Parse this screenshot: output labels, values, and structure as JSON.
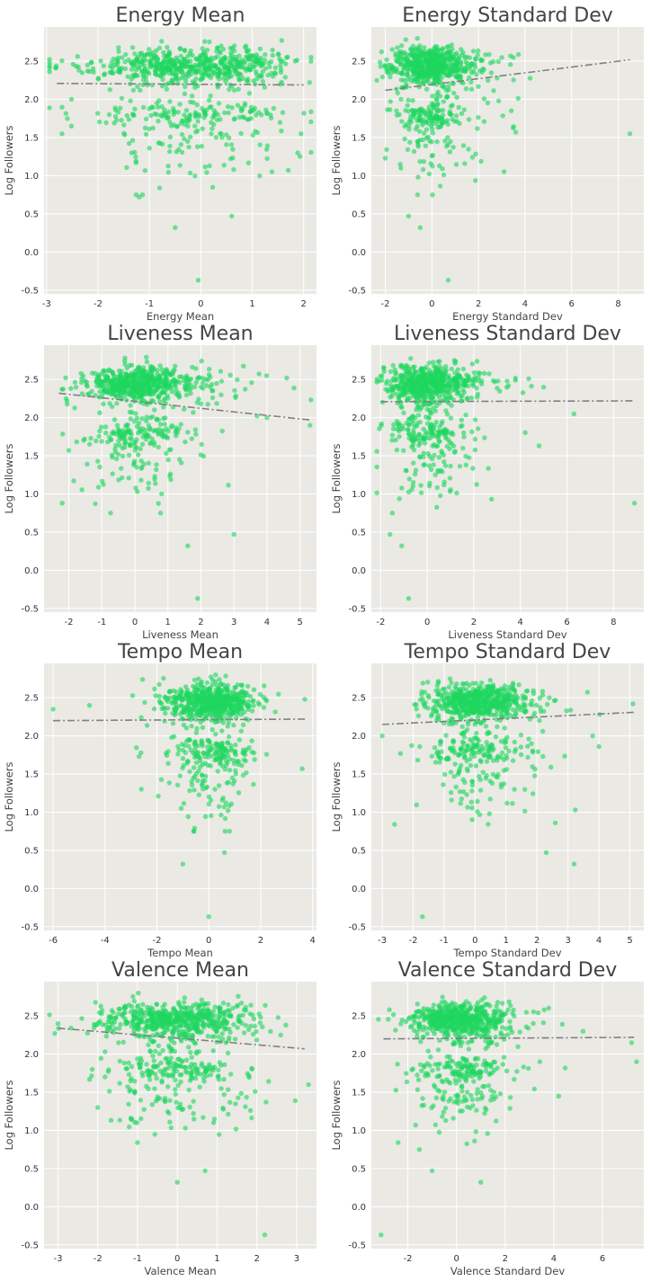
{
  "colors": {
    "points": "#1ed760",
    "fit_line": "#808080",
    "plot_background": "#eae9e4",
    "grid": "#ffffff"
  },
  "chart_data": [
    {
      "type": "scatter",
      "title": "Energy Mean",
      "xlabel": "Energy Mean",
      "ylabel": "Log Followers",
      "xlim": [
        -3.05,
        2.25
      ],
      "ylim": [
        -0.55,
        2.95
      ],
      "xticks": [
        -3,
        -2,
        -1,
        0,
        1,
        2
      ],
      "yticks": [
        -0.5,
        0.0,
        0.5,
        1.0,
        1.5,
        2.0,
        2.5
      ],
      "x_center": 0.0,
      "x_spread": 0.95,
      "x_skew": -0.5,
      "outliers": [
        [
          -0.05,
          -0.37
        ],
        [
          -0.5,
          0.32
        ],
        [
          0.6,
          0.47
        ],
        [
          -1.2,
          0.72
        ],
        [
          -0.8,
          0.84
        ],
        [
          1.7,
          1.07
        ],
        [
          -2.7,
          1.55
        ],
        [
          1.95,
          1.55
        ]
      ],
      "trend": {
        "x": [
          -2.8,
          2.0
        ],
        "y": [
          2.21,
          2.19
        ]
      },
      "grid": true
    },
    {
      "type": "scatter",
      "title": "Energy Standard Dev",
      "xlabel": "Energy Standard Dev",
      "ylabel": "Log Followers",
      "xlim": [
        -2.6,
        9.1
      ],
      "ylim": [
        -0.55,
        2.95
      ],
      "xticks": [
        -2,
        0,
        2,
        4,
        6,
        8
      ],
      "yticks": [
        -0.5,
        0.0,
        0.5,
        1.0,
        1.5,
        2.0,
        2.5
      ],
      "x_center": -0.2,
      "x_spread": 0.8,
      "x_skew": 0.9,
      "outliers": [
        [
          0.7,
          -0.37
        ],
        [
          -0.5,
          0.32
        ],
        [
          -1.0,
          0.47
        ],
        [
          -2.0,
          1.23
        ],
        [
          8.5,
          1.55
        ],
        [
          3.6,
          1.57
        ],
        [
          3.5,
          2.55
        ],
        [
          3.0,
          2.55
        ]
      ],
      "trend": {
        "x": [
          -2.0,
          8.5
        ],
        "y": [
          2.12,
          2.52
        ]
      },
      "grid": true
    },
    {
      "type": "scatter",
      "title": "Liveness Mean",
      "xlabel": "Liveness Mean",
      "ylabel": "Log Followers",
      "xlim": [
        -2.75,
        5.5
      ],
      "ylim": [
        -0.55,
        2.95
      ],
      "xticks": [
        -2,
        -1,
        0,
        1,
        2,
        3,
        4,
        5
      ],
      "yticks": [
        -0.5,
        0.0,
        0.5,
        1.0,
        1.5,
        2.0,
        2.5
      ],
      "x_center": 0.0,
      "x_spread": 0.75,
      "x_skew": 0.9,
      "outliers": [
        [
          1.9,
          -0.37
        ],
        [
          1.6,
          0.32
        ],
        [
          3.0,
          0.47
        ],
        [
          -2.2,
          0.88
        ],
        [
          4.6,
          2.52
        ],
        [
          5.3,
          1.9
        ],
        [
          4.0,
          2.0
        ],
        [
          -2.0,
          1.57
        ]
      ],
      "trend": {
        "x": [
          -2.3,
          5.3
        ],
        "y": [
          2.32,
          1.97
        ]
      },
      "grid": true
    },
    {
      "type": "scatter",
      "title": "Liveness Standard Dev",
      "xlabel": "Liveness Standard Dev",
      "ylabel": "Log Followers",
      "xlim": [
        -2.4,
        9.3
      ],
      "ylim": [
        -0.55,
        2.95
      ],
      "xticks": [
        -2,
        0,
        2,
        4,
        6,
        8
      ],
      "yticks": [
        -0.5,
        0.0,
        0.5,
        1.0,
        1.5,
        2.0,
        2.5
      ],
      "x_center": -0.2,
      "x_spread": 0.8,
      "x_skew": 0.9,
      "outliers": [
        [
          -0.8,
          -0.37
        ],
        [
          -1.1,
          0.32
        ],
        [
          -1.6,
          0.47
        ],
        [
          8.9,
          0.88
        ],
        [
          6.3,
          2.05
        ],
        [
          5.0,
          2.4
        ],
        [
          4.8,
          1.63
        ],
        [
          -1.5,
          0.75
        ]
      ],
      "trend": {
        "x": [
          -2.0,
          8.9
        ],
        "y": [
          2.21,
          2.22
        ]
      },
      "grid": true
    },
    {
      "type": "scatter",
      "title": "Tempo Mean",
      "xlabel": "Tempo Mean",
      "ylabel": "Log Followers",
      "xlim": [
        -6.35,
        4.15
      ],
      "ylim": [
        -0.55,
        2.95
      ],
      "xticks": [
        -6,
        -4,
        -2,
        0,
        2,
        4
      ],
      "yticks": [
        -0.5,
        0.0,
        0.5,
        1.0,
        1.5,
        2.0,
        2.5
      ],
      "x_center": 0.2,
      "x_spread": 0.85,
      "x_skew": -0.5,
      "outliers": [
        [
          0.0,
          -0.37
        ],
        [
          -1.0,
          0.32
        ],
        [
          0.6,
          0.47
        ],
        [
          -6.0,
          2.35
        ],
        [
          -4.6,
          2.4
        ],
        [
          3.7,
          2.48
        ],
        [
          3.6,
          1.57
        ],
        [
          -2.6,
          1.3
        ]
      ],
      "trend": {
        "x": [
          -6.0,
          3.7
        ],
        "y": [
          2.2,
          2.22
        ]
      },
      "grid": true
    },
    {
      "type": "scatter",
      "title": "Tempo Standard Dev",
      "xlabel": "Tempo Standard Dev",
      "ylabel": "Log Followers",
      "xlim": [
        -3.35,
        5.45
      ],
      "ylim": [
        -0.55,
        2.95
      ],
      "xticks": [
        -3,
        -2,
        -1,
        0,
        1,
        2,
        3,
        4,
        5
      ],
      "yticks": [
        -0.5,
        0.0,
        0.5,
        1.0,
        1.5,
        2.0,
        2.5
      ],
      "x_center": -0.1,
      "x_spread": 0.75,
      "x_skew": 0.7,
      "outliers": [
        [
          -1.7,
          -0.37
        ],
        [
          3.2,
          0.32
        ],
        [
          2.3,
          0.47
        ],
        [
          -2.6,
          0.84
        ],
        [
          5.1,
          2.42
        ],
        [
          4.0,
          1.86
        ],
        [
          3.8,
          2.0
        ],
        [
          -3.0,
          2.0
        ]
      ],
      "trend": {
        "x": [
          -3.0,
          5.2
        ],
        "y": [
          2.15,
          2.31
        ]
      },
      "grid": true
    },
    {
      "type": "scatter",
      "title": "Valence Mean",
      "xlabel": "Valence Mean",
      "ylabel": "Log Followers",
      "xlim": [
        -3.35,
        3.5
      ],
      "ylim": [
        -0.55,
        2.95
      ],
      "xticks": [
        -3,
        -2,
        -1,
        0,
        1,
        2,
        3
      ],
      "yticks": [
        -0.5,
        0.0,
        0.5,
        1.0,
        1.5,
        2.0,
        2.5
      ],
      "x_center": 0.0,
      "x_spread": 0.95,
      "x_skew": 0.0,
      "outliers": [
        [
          2.2,
          -0.37
        ],
        [
          0.0,
          0.32
        ],
        [
          0.7,
          0.47
        ],
        [
          -1.0,
          0.84
        ],
        [
          -3.0,
          2.4
        ],
        [
          3.3,
          1.6
        ],
        [
          -2.0,
          1.3
        ],
        [
          2.6,
          2.25
        ]
      ],
      "trend": {
        "x": [
          -3.0,
          3.2
        ],
        "y": [
          2.34,
          2.07
        ]
      },
      "grid": true
    },
    {
      "type": "scatter",
      "title": "Valence Standard Dev",
      "xlabel": "Valence Standard Dev",
      "ylabel": "Log Followers",
      "xlim": [
        -3.5,
        7.7
      ],
      "ylim": [
        -0.55,
        2.95
      ],
      "xticks": [
        -2,
        0,
        2,
        4,
        6
      ],
      "yticks": [
        -0.5,
        0.0,
        0.5,
        1.0,
        1.5,
        2.0,
        2.5
      ],
      "x_center": -0.1,
      "x_spread": 0.9,
      "x_skew": 0.8,
      "outliers": [
        [
          -3.1,
          -0.37
        ],
        [
          1.0,
          0.32
        ],
        [
          -1.0,
          0.47
        ],
        [
          -2.4,
          0.84
        ],
        [
          7.2,
          2.15
        ],
        [
          7.4,
          1.9
        ],
        [
          5.2,
          2.3
        ],
        [
          4.2,
          1.45
        ]
      ],
      "trend": {
        "x": [
          -3.0,
          7.3
        ],
        "y": [
          2.2,
          2.22
        ]
      },
      "grid": true
    }
  ]
}
